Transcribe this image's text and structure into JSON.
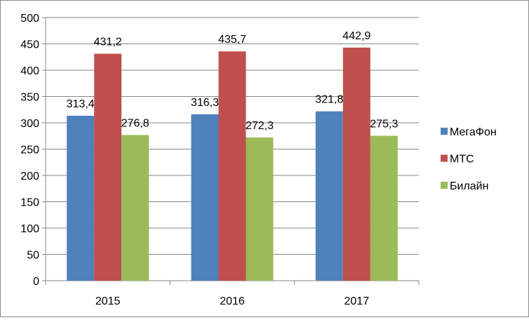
{
  "chart_data": {
    "type": "bar",
    "categories": [
      "2015",
      "2016",
      "2017"
    ],
    "series": [
      {
        "name": "МегаФон",
        "color": "#4f81bd",
        "values": [
          313.4,
          316.3,
          321.8
        ],
        "labels": [
          "313,4",
          "316,3",
          "321,8"
        ]
      },
      {
        "name": "МТС",
        "color": "#c0504d",
        "values": [
          431.2,
          435.7,
          442.9
        ],
        "labels": [
          "431,2",
          "435,7",
          "442,9"
        ]
      },
      {
        "name": "Билайн",
        "color": "#9bbb59",
        "values": [
          276.8,
          272.3,
          275.3
        ],
        "labels": [
          "276,8",
          "272,3",
          "275,3"
        ]
      }
    ],
    "ylim": [
      0,
      500
    ],
    "yticks": [
      "0",
      "50",
      "100",
      "150",
      "200",
      "250",
      "300",
      "350",
      "400",
      "450",
      "500"
    ],
    "grid": true,
    "legend": "right",
    "title": "",
    "xlabel": "",
    "ylabel": ""
  }
}
